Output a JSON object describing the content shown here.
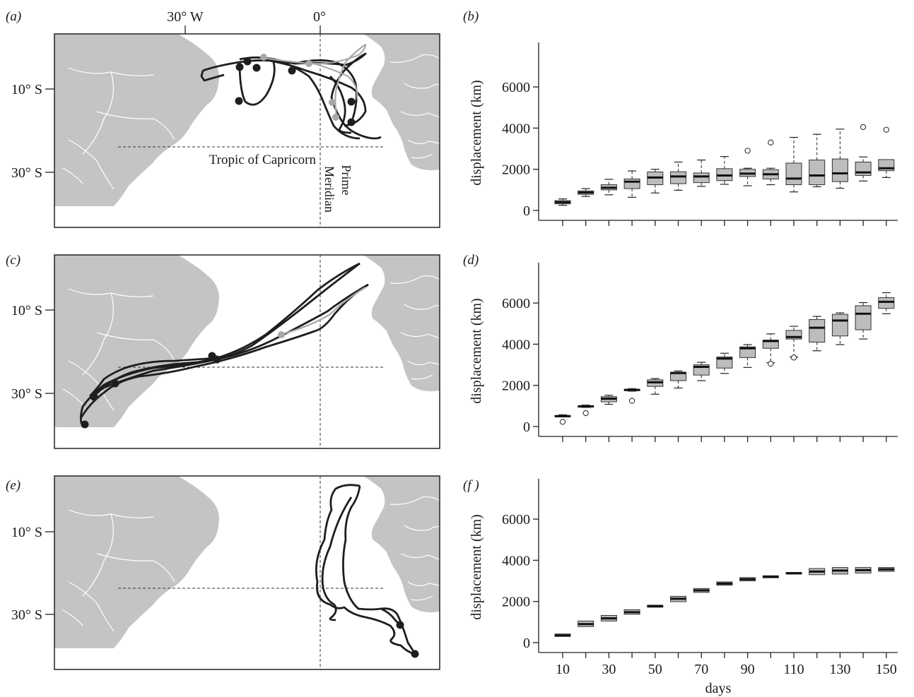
{
  "maps": [
    {
      "label": "(a)",
      "lat_labels": [
        "10° S",
        "30° S"
      ],
      "lon_labels": [
        "30° W",
        "0°"
      ],
      "annotations": {
        "tropic": "Tropic of Capricorn",
        "prime": "Prime",
        "meridian": "Meridian"
      },
      "track_color": "#1e1e1e",
      "alt_color": "#a8a8a8"
    },
    {
      "label": "(c)",
      "lat_labels": [
        "10° S",
        "30° S"
      ]
    },
    {
      "label": "(e)",
      "lat_labels": [
        "10° S",
        "30° S"
      ]
    }
  ],
  "land_color": "#c4c4c4",
  "box_color": "#bdbdbd",
  "chart_data": [
    {
      "type": "box",
      "label": "(b)",
      "title": "",
      "xlabel": "",
      "ylabel": "displacement (km)",
      "ylim": [
        0,
        7000
      ],
      "yticks": [
        0,
        2000,
        4000,
        6000
      ],
      "x": [
        10,
        20,
        30,
        40,
        50,
        60,
        70,
        80,
        90,
        100,
        110,
        120,
        130,
        140,
        150
      ],
      "boxes": [
        {
          "x": 10,
          "whislo": 250,
          "q1": 320,
          "med": 400,
          "q3": 480,
          "whishi": 560,
          "fliers": []
        },
        {
          "x": 20,
          "whislo": 680,
          "q1": 780,
          "med": 870,
          "q3": 950,
          "whishi": 1060,
          "fliers": []
        },
        {
          "x": 30,
          "whislo": 760,
          "q1": 1000,
          "med": 1100,
          "q3": 1250,
          "whishi": 1510,
          "fliers": []
        },
        {
          "x": 40,
          "whislo": 640,
          "q1": 1060,
          "med": 1400,
          "q3": 1530,
          "whishi": 1920,
          "fliers": []
        },
        {
          "x": 50,
          "whislo": 850,
          "q1": 1250,
          "med": 1600,
          "q3": 1870,
          "whishi": 2000,
          "fliers": []
        },
        {
          "x": 60,
          "whislo": 980,
          "q1": 1300,
          "med": 1650,
          "q3": 1880,
          "whishi": 2350,
          "fliers": []
        },
        {
          "x": 70,
          "whislo": 1170,
          "q1": 1350,
          "med": 1650,
          "q3": 1820,
          "whishi": 2450,
          "fliers": []
        },
        {
          "x": 80,
          "whislo": 1270,
          "q1": 1450,
          "med": 1700,
          "q3": 2030,
          "whishi": 2620,
          "fliers": []
        },
        {
          "x": 90,
          "whislo": 1200,
          "q1": 1650,
          "med": 1790,
          "q3": 2000,
          "whishi": 2050,
          "fliers": [
            2900
          ]
        },
        {
          "x": 100,
          "whislo": 1250,
          "q1": 1530,
          "med": 1760,
          "q3": 1980,
          "whishi": 2050,
          "fliers": [
            3300
          ]
        },
        {
          "x": 110,
          "whislo": 900,
          "q1": 1250,
          "med": 1550,
          "q3": 2300,
          "whishi": 3550,
          "fliers": []
        },
        {
          "x": 120,
          "whislo": 1150,
          "q1": 1250,
          "med": 1700,
          "q3": 2450,
          "whishi": 3700,
          "fliers": []
        },
        {
          "x": 130,
          "whislo": 1080,
          "q1": 1400,
          "med": 1800,
          "q3": 2500,
          "whishi": 3950,
          "fliers": []
        },
        {
          "x": 140,
          "whislo": 1430,
          "q1": 1700,
          "med": 1850,
          "q3": 2350,
          "whishi": 2600,
          "fliers": [
            4050
          ]
        },
        {
          "x": 150,
          "whislo": 1600,
          "q1": 1930,
          "med": 2050,
          "q3": 2470,
          "whishi": 2470,
          "fliers": [
            3920
          ]
        }
      ]
    },
    {
      "type": "box",
      "label": "(d)",
      "title": "",
      "xlabel": "",
      "ylabel": "displacement (km)",
      "ylim": [
        0,
        7000
      ],
      "yticks": [
        0,
        2000,
        4000,
        6000
      ],
      "x": [
        10,
        20,
        30,
        40,
        50,
        60,
        70,
        80,
        90,
        100,
        110,
        120,
        130,
        140,
        150
      ],
      "boxes": [
        {
          "x": 10,
          "whislo": 470,
          "q1": 480,
          "med": 500,
          "q3": 540,
          "whishi": 570,
          "fliers": [
            230
          ]
        },
        {
          "x": 20,
          "whislo": 930,
          "q1": 950,
          "med": 980,
          "q3": 1010,
          "whishi": 1040,
          "fliers": [
            650
          ]
        },
        {
          "x": 30,
          "whislo": 1080,
          "q1": 1200,
          "med": 1350,
          "q3": 1450,
          "whishi": 1520,
          "fliers": []
        },
        {
          "x": 40,
          "whislo": 1720,
          "q1": 1740,
          "med": 1780,
          "q3": 1810,
          "whishi": 1840,
          "fliers": [
            1250
          ]
        },
        {
          "x": 50,
          "whislo": 1570,
          "q1": 1950,
          "med": 2150,
          "q3": 2270,
          "whishi": 2330,
          "fliers": []
        },
        {
          "x": 60,
          "whislo": 1870,
          "q1": 2230,
          "med": 2600,
          "q3": 2640,
          "whishi": 2700,
          "fliers": []
        },
        {
          "x": 70,
          "whislo": 2230,
          "q1": 2500,
          "med": 2900,
          "q3": 3000,
          "whishi": 3120,
          "fliers": []
        },
        {
          "x": 80,
          "whislo": 2580,
          "q1": 2840,
          "med": 3300,
          "q3": 3380,
          "whishi": 3560,
          "fliers": []
        },
        {
          "x": 90,
          "whislo": 2870,
          "q1": 3350,
          "med": 3800,
          "q3": 3870,
          "whishi": 3980,
          "fliers": []
        },
        {
          "x": 100,
          "whislo": 3100,
          "q1": 3800,
          "med": 4150,
          "q3": 4200,
          "whishi": 4500,
          "fliers": [
            3050
          ]
        },
        {
          "x": 110,
          "whislo": 3380,
          "q1": 4250,
          "med": 4350,
          "q3": 4670,
          "whishi": 4870,
          "fliers": [
            3350
          ]
        },
        {
          "x": 120,
          "whislo": 3680,
          "q1": 4100,
          "med": 4800,
          "q3": 5200,
          "whishi": 5350,
          "fliers": []
        },
        {
          "x": 130,
          "whislo": 3980,
          "q1": 4400,
          "med": 5150,
          "q3": 5450,
          "whishi": 5520,
          "fliers": []
        },
        {
          "x": 140,
          "whislo": 4250,
          "q1": 4700,
          "med": 5480,
          "q3": 5870,
          "whishi": 6020,
          "fliers": []
        },
        {
          "x": 150,
          "whislo": 5480,
          "q1": 5740,
          "med": 6060,
          "q3": 6260,
          "whishi": 6500,
          "fliers": []
        }
      ]
    },
    {
      "type": "box",
      "label": "(f )",
      "title": "",
      "xlabel": "days",
      "ylabel": "displacement (km)",
      "ylim": [
        0,
        7000
      ],
      "yticks": [
        0,
        2000,
        4000,
        6000
      ],
      "x": [
        10,
        20,
        30,
        40,
        50,
        60,
        70,
        80,
        90,
        100,
        110,
        120,
        130,
        140,
        150
      ],
      "xticklabels": [
        "10",
        "30",
        "50",
        "70",
        "90",
        "110",
        "130",
        "150"
      ],
      "boxes": [
        {
          "x": 10,
          "whislo": 300,
          "q1": 300,
          "med": 350,
          "q3": 420,
          "whishi": 420,
          "fliers": []
        },
        {
          "x": 20,
          "whislo": 780,
          "q1": 780,
          "med": 900,
          "q3": 1050,
          "whishi": 1050,
          "fliers": []
        },
        {
          "x": 30,
          "whislo": 1050,
          "q1": 1050,
          "med": 1180,
          "q3": 1320,
          "whishi": 1320,
          "fliers": []
        },
        {
          "x": 40,
          "whislo": 1380,
          "q1": 1380,
          "med": 1480,
          "q3": 1600,
          "whishi": 1600,
          "fliers": []
        },
        {
          "x": 50,
          "whislo": 1720,
          "q1": 1720,
          "med": 1770,
          "q3": 1820,
          "whishi": 1820,
          "fliers": []
        },
        {
          "x": 60,
          "whislo": 1990,
          "q1": 1990,
          "med": 2130,
          "q3": 2250,
          "whishi": 2250,
          "fliers": []
        },
        {
          "x": 70,
          "whislo": 2440,
          "q1": 2440,
          "med": 2540,
          "q3": 2630,
          "whishi": 2630,
          "fliers": []
        },
        {
          "x": 80,
          "whislo": 2790,
          "q1": 2790,
          "med": 2870,
          "q3": 2950,
          "whishi": 2950,
          "fliers": []
        },
        {
          "x": 90,
          "whislo": 3000,
          "q1": 3000,
          "med": 3080,
          "q3": 3160,
          "whishi": 3160,
          "fliers": []
        },
        {
          "x": 100,
          "whislo": 3150,
          "q1": 3150,
          "med": 3200,
          "q3": 3250,
          "whishi": 3250,
          "fliers": []
        },
        {
          "x": 110,
          "whislo": 3330,
          "q1": 3330,
          "med": 3370,
          "q3": 3410,
          "whishi": 3410,
          "fliers": []
        },
        {
          "x": 120,
          "whislo": 3300,
          "q1": 3300,
          "med": 3450,
          "q3": 3600,
          "whishi": 3600,
          "fliers": []
        },
        {
          "x": 130,
          "whislo": 3330,
          "q1": 3330,
          "med": 3500,
          "q3": 3650,
          "whishi": 3650,
          "fliers": []
        },
        {
          "x": 140,
          "whislo": 3380,
          "q1": 3380,
          "med": 3520,
          "q3": 3650,
          "whishi": 3650,
          "fliers": []
        },
        {
          "x": 150,
          "whislo": 3460,
          "q1": 3460,
          "med": 3560,
          "q3": 3650,
          "whishi": 3650,
          "fliers": []
        }
      ]
    }
  ]
}
